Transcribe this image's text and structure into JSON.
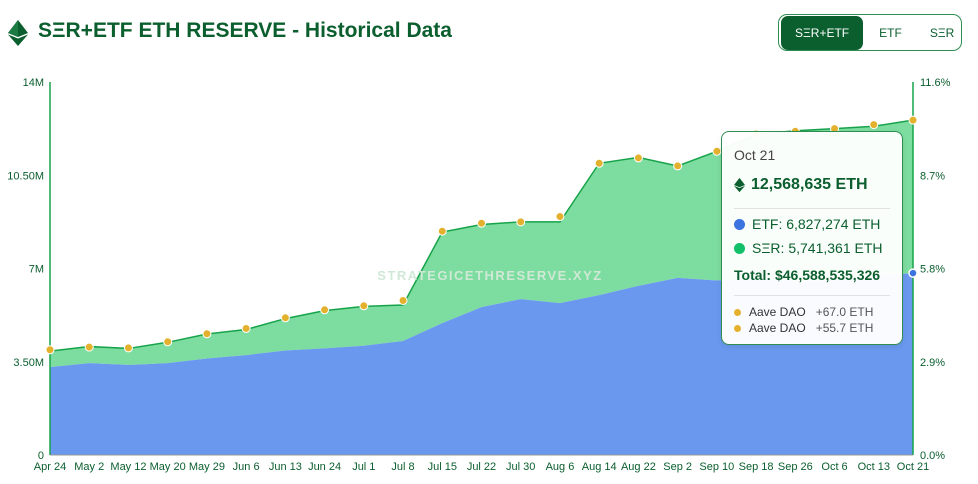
{
  "header": {
    "title": "SΞR+ETF ETH RESERVE - Historical Data",
    "tabs": [
      {
        "label": "SΞR+ETF",
        "active": true
      },
      {
        "label": "ETF",
        "active": false
      },
      {
        "label": "SΞR",
        "active": false
      }
    ],
    "icon": "ethereum-icon"
  },
  "watermark": "STRATEGICETHRESERVE.XYZ",
  "colors": {
    "etf": "#6a98ee",
    "ser": "#7ddc9f",
    "ser_line": "#16a34a",
    "event": "#e4b12e",
    "brand": "#0b5e2e"
  },
  "chart_data": {
    "type": "area",
    "x": [
      "Apr 24",
      "May 2",
      "May 12",
      "May 20",
      "May 29",
      "Jun 6",
      "Jun 13",
      "Jun 24",
      "Jul 1",
      "Jul 8",
      "Jul 15",
      "Jul 22",
      "Jul 30",
      "Aug 6",
      "Aug 14",
      "Aug 22",
      "Sep 2",
      "Sep 10",
      "Sep 18",
      "Sep 26",
      "Oct 6",
      "Oct 13",
      "Oct 21"
    ],
    "series": [
      {
        "name": "ETF",
        "values": [
          3.3,
          3.45,
          3.38,
          3.45,
          3.62,
          3.75,
          3.92,
          4.0,
          4.1,
          4.28,
          4.95,
          5.55,
          5.85,
          5.7,
          6.0,
          6.35,
          6.65,
          6.55,
          6.65,
          6.52,
          6.55,
          6.72,
          6.827
        ]
      },
      {
        "name": "SΞR",
        "values": [
          0.6,
          0.62,
          0.62,
          0.78,
          0.92,
          0.96,
          1.2,
          1.42,
          1.48,
          1.35,
          3.42,
          3.1,
          2.9,
          3.05,
          4.95,
          4.82,
          4.2,
          4.85,
          5.38,
          5.65,
          5.7,
          5.62,
          5.741
        ]
      }
    ],
    "total_values": [
      3.9,
      4.07,
      4.0,
      4.23,
      4.54,
      4.71,
      5.12,
      5.42,
      5.58,
      5.63,
      8.37,
      8.65,
      8.75,
      8.75,
      10.95,
      11.17,
      10.85,
      11.4,
      12.03,
      12.17,
      12.25,
      12.34,
      12.569
    ],
    "events_total": [
      3.95,
      4.05,
      4.02,
      4.25,
      4.55,
      4.75,
      5.15,
      5.45,
      5.6,
      5.8,
      8.4,
      8.7,
      8.75,
      8.95,
      10.95,
      11.15,
      10.85,
      11.4,
      12.05,
      12.15,
      12.25,
      12.4,
      12.569
    ],
    "ylim": [
      0,
      14
    ],
    "y_ticks": [
      0,
      3.5,
      7,
      10.5,
      14
    ],
    "y_tick_labels": [
      "0",
      "3.50M",
      "7M",
      "10.50M",
      "14M"
    ],
    "y2_tick_labels": [
      "0.0%",
      "2.9%",
      "5.8%",
      "8.7%",
      "11.6%"
    ],
    "grid": false,
    "legend": "none"
  },
  "tooltip": {
    "date": "Oct 21",
    "total_eth": "12,568,635 ETH",
    "etf": "ETF: 6,827,274 ETH",
    "ser": "SΞR: 5,741,361 ETH",
    "total_usd": "Total: $46,588,535,326",
    "events": [
      {
        "name": "Aave DAO",
        "amount": "+67.0 ETH"
      },
      {
        "name": "Aave DAO",
        "amount": "+55.7 ETH"
      }
    ]
  }
}
